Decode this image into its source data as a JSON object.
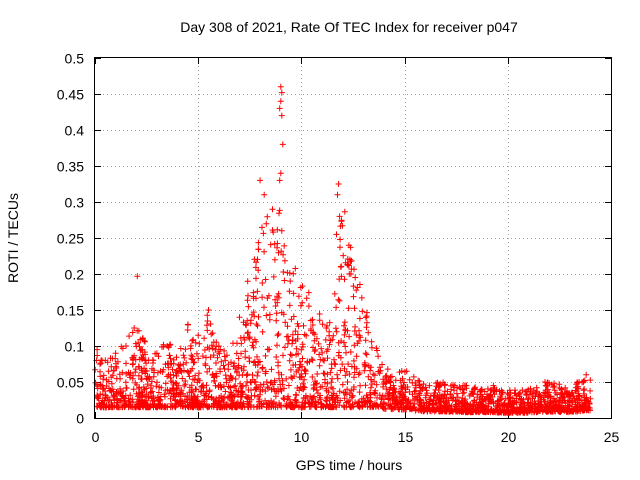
{
  "chart_data": {
    "type": "scatter",
    "title": "Day 308 of 2021, Rate Of TEC Index for receiver p047",
    "xlabel": "GPS time / hours",
    "ylabel": "ROTI / TECUs",
    "xlim": [
      0,
      25
    ],
    "ylim": [
      0,
      0.5
    ],
    "xticks": [
      "0",
      "5",
      "10",
      "15",
      "20",
      "25"
    ],
    "yticks": [
      "0",
      "0.05",
      "0.1",
      "0.15",
      "0.2",
      "0.25",
      "0.3",
      "0.35",
      "0.4",
      "0.45",
      "0.5"
    ],
    "grid": true,
    "marker": "plus",
    "marker_color": "#ff0000",
    "series": [
      {
        "name": "ROTI",
        "envelope_hours": [
          0,
          0.5,
          1,
          1.5,
          2,
          2.5,
          3,
          3.5,
          4,
          4.5,
          5,
          5.5,
          6,
          6.5,
          7,
          7.5,
          8,
          8.5,
          9,
          9.5,
          10,
          10.5,
          11,
          11.5,
          12,
          12.5,
          13,
          13.5,
          14,
          15,
          16,
          17,
          18,
          19,
          20,
          21,
          22,
          23,
          24
        ],
        "envelope_max_roti": [
          0.095,
          0.08,
          0.09,
          0.11,
          0.125,
          0.11,
          0.09,
          0.11,
          0.09,
          0.13,
          0.11,
          0.15,
          0.1,
          0.09,
          0.13,
          0.19,
          0.31,
          0.27,
          0.3,
          0.24,
          0.21,
          0.16,
          0.14,
          0.13,
          0.31,
          0.23,
          0.17,
          0.11,
          0.07,
          0.065,
          0.05,
          0.05,
          0.045,
          0.045,
          0.04,
          0.04,
          0.05,
          0.045,
          0.06
        ],
        "points": [
          [
            2.05,
            0.197
          ],
          [
            8.0,
            0.33
          ],
          [
            8.2,
            0.31
          ],
          [
            8.6,
            0.29
          ],
          [
            8.6,
            0.261
          ],
          [
            9.0,
            0.46
          ],
          [
            9.05,
            0.452
          ],
          [
            9.0,
            0.44
          ],
          [
            8.95,
            0.43
          ],
          [
            9.05,
            0.42
          ],
          [
            9.1,
            0.38
          ],
          [
            9.0,
            0.34
          ],
          [
            8.95,
            0.33
          ],
          [
            9.05,
            0.26
          ],
          [
            11.8,
            0.325
          ],
          [
            11.75,
            0.31
          ],
          [
            11.85,
            0.28
          ],
          [
            11.7,
            0.255
          ],
          [
            12.3,
            0.24
          ],
          [
            12.35,
            0.22
          ],
          [
            12.4,
            0.2
          ],
          [
            0.1,
            0.095
          ],
          [
            0.5,
            0.08
          ],
          [
            1.0,
            0.09
          ],
          [
            1.5,
            0.1
          ],
          [
            1.9,
            0.125
          ],
          [
            2.3,
            0.11
          ],
          [
            3.0,
            0.09
          ],
          [
            3.5,
            0.1
          ],
          [
            4.5,
            0.13
          ],
          [
            5.0,
            0.115
          ],
          [
            5.5,
            0.15
          ],
          [
            6.0,
            0.1
          ],
          [
            7.0,
            0.14
          ],
          [
            7.4,
            0.19
          ],
          [
            15.1,
            0.065
          ],
          [
            16.2,
            0.045
          ],
          [
            18.0,
            0.045
          ],
          [
            19.3,
            0.045
          ],
          [
            21.8,
            0.05
          ],
          [
            23.8,
            0.06
          ]
        ]
      }
    ]
  }
}
